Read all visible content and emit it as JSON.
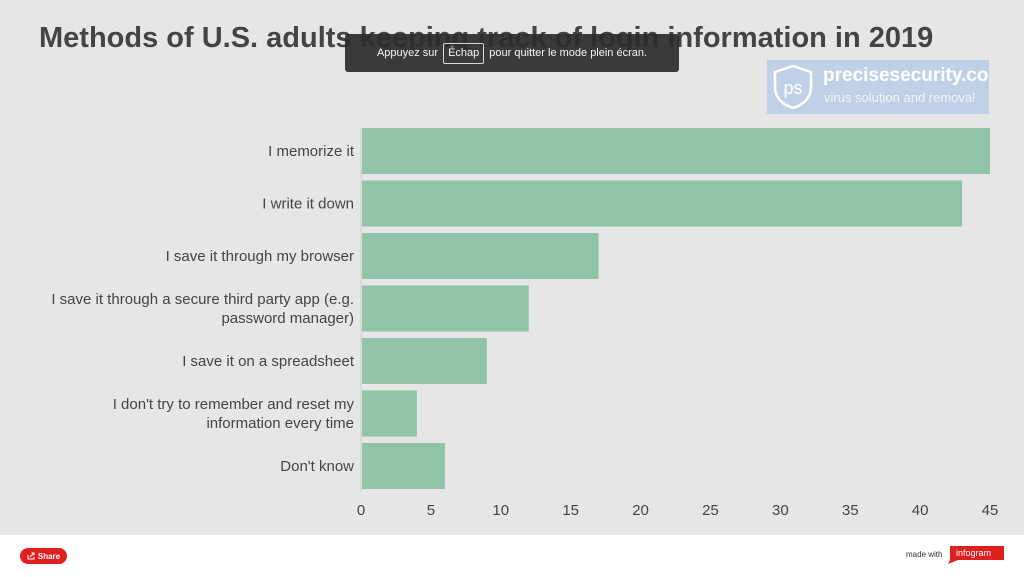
{
  "chart_data": {
    "type": "bar",
    "orientation": "horizontal",
    "title": "Methods of U.S. adults keeping track of login information in 2019",
    "categories": [
      "I memorize it",
      "I write it down",
      "I save it through my browser",
      "I save it through a secure third party app (e.g. password manager)",
      "I save it on a spreadsheet",
      "I don't try to remember and reset my information every time",
      "Don't know"
    ],
    "category_lines": [
      [
        "I memorize it"
      ],
      [
        "I write it down"
      ],
      [
        "I save it through my browser"
      ],
      [
        "I save it through a secure third party app (e.g.",
        "password manager)"
      ],
      [
        "I save it on a spreadsheet"
      ],
      [
        "I don't try to remember and reset my",
        "information every time"
      ],
      [
        "Don't know"
      ]
    ],
    "values": [
      45,
      43,
      17,
      12,
      9,
      4,
      6
    ],
    "xlim": [
      0,
      45
    ],
    "xticks": [
      0,
      5,
      10,
      15,
      20,
      25,
      30,
      35,
      40,
      45
    ],
    "grid": false,
    "bar_color": "#8fc4a7",
    "axis_color": "#cccccc",
    "label_color": "#444444"
  },
  "fullscreen_notice": {
    "before": "Appuyez sur",
    "key": "Échap",
    "after": "pour quitter le mode plein écran."
  },
  "watermark": {
    "badge_text": "ps",
    "domain": "precisesecurity.com",
    "tagline": "virus solution and removal"
  },
  "footer": {
    "share_label": "Share",
    "made_with": "made with",
    "brand": "infogram",
    "brand_color": "#e0201f"
  }
}
